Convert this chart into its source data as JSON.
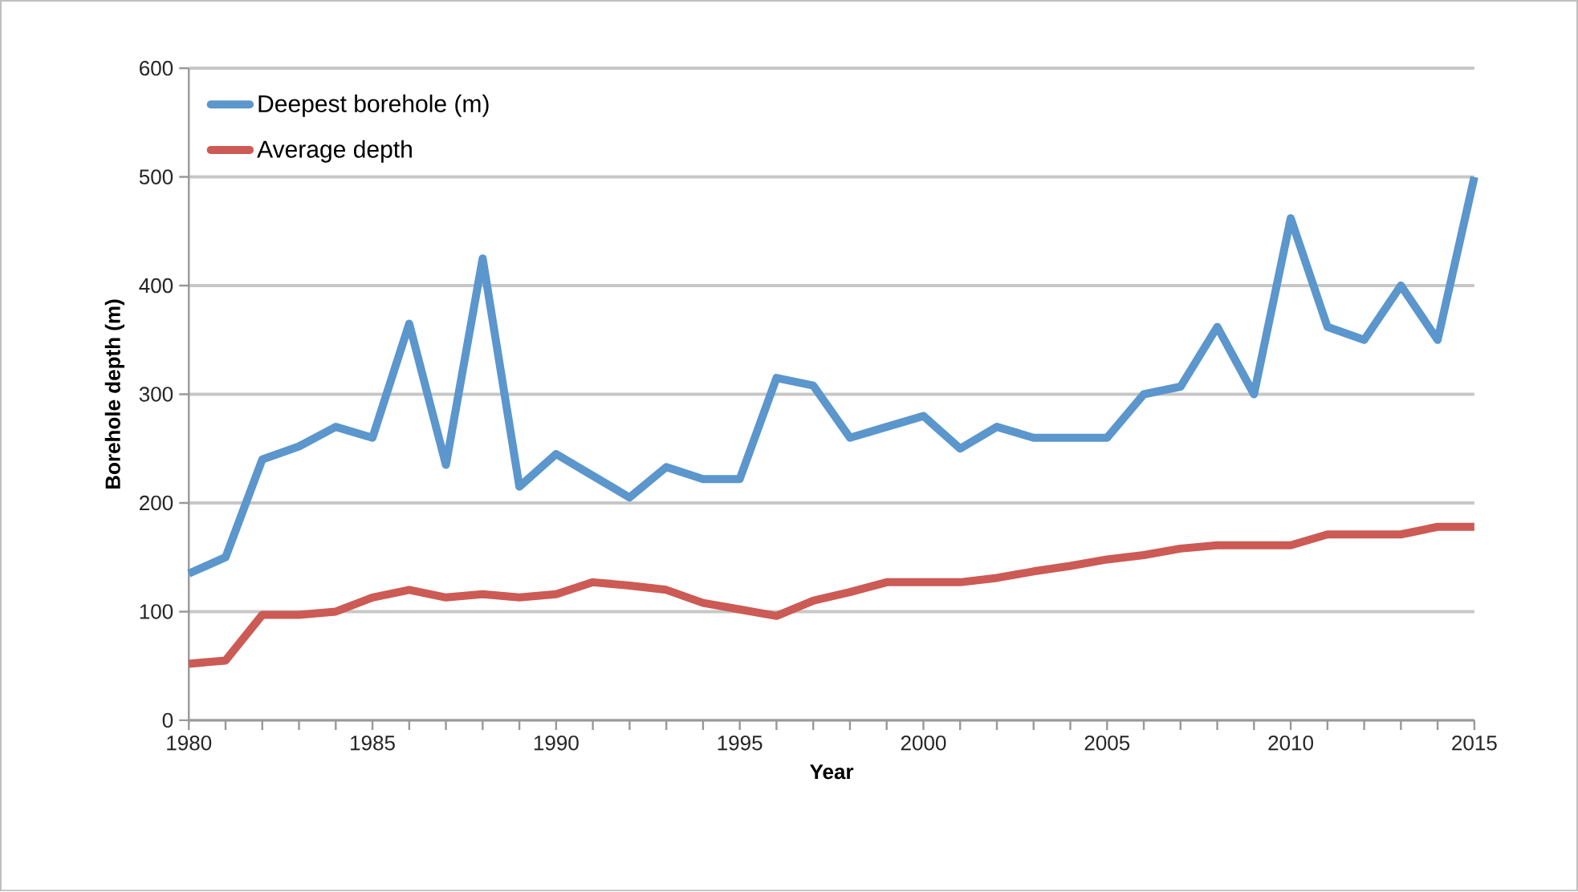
{
  "chart_data": {
    "type": "line",
    "xlabel": "Year",
    "ylabel": "Borehole depth (m)",
    "x": [
      1980,
      1981,
      1982,
      1983,
      1984,
      1985,
      1986,
      1987,
      1988,
      1989,
      1990,
      1991,
      1992,
      1993,
      1994,
      1995,
      1996,
      1997,
      1998,
      1999,
      2000,
      2001,
      2002,
      2003,
      2004,
      2005,
      2006,
      2007,
      2008,
      2009,
      2010,
      2011,
      2012,
      2013,
      2014,
      2015
    ],
    "series": [
      {
        "name": "Deepest borehole (m)",
        "color": "#5b96cc",
        "values": [
          135,
          150,
          240,
          252,
          270,
          260,
          365,
          235,
          425,
          215,
          245,
          225,
          205,
          233,
          222,
          222,
          315,
          308,
          260,
          270,
          280,
          250,
          270,
          260,
          260,
          260,
          300,
          307,
          362,
          300,
          462,
          362,
          350,
          400,
          350,
          500
        ]
      },
      {
        "name": "Average depth",
        "color": "#cc5a55",
        "values": [
          52,
          55,
          97,
          97,
          100,
          113,
          120,
          113,
          116,
          113,
          116,
          127,
          124,
          120,
          108,
          102,
          96,
          110,
          118,
          127,
          127,
          127,
          131,
          137,
          142,
          148,
          152,
          158,
          161,
          161,
          161,
          171,
          171,
          171,
          178,
          178
        ]
      }
    ],
    "xlim": [
      1980,
      2015
    ],
    "ylim": [
      0,
      600
    ],
    "xticks": [
      1980,
      {
        "value": 1981,
        "label": null
      },
      {
        "value": 1982,
        "label": null
      },
      {
        "value": 1983,
        "label": null
      },
      {
        "value": 1984,
        "label": null
      },
      1985,
      {
        "value": 1986,
        "label": null
      },
      {
        "value": 1987,
        "label": null
      },
      {
        "value": 1988,
        "label": null
      },
      {
        "value": 1989,
        "label": null
      },
      1990,
      {
        "value": 1991,
        "label": null
      },
      {
        "value": 1992,
        "label": null
      },
      {
        "value": 1993,
        "label": null
      },
      {
        "value": 1994,
        "label": null
      },
      1995,
      {
        "value": 1996,
        "label": null
      },
      {
        "value": 1997,
        "label": null
      },
      {
        "value": 1998,
        "label": null
      },
      {
        "value": 1999,
        "label": null
      },
      2000,
      {
        "value": 2001,
        "label": null
      },
      {
        "value": 2002,
        "label": null
      },
      {
        "value": 2003,
        "label": null
      },
      {
        "value": 2004,
        "label": null
      },
      2005,
      {
        "value": 2006,
        "label": null
      },
      {
        "value": 2007,
        "label": null
      },
      {
        "value": 2008,
        "label": null
      },
      {
        "value": 2009,
        "label": null
      },
      2010,
      {
        "value": 2011,
        "label": null
      },
      {
        "value": 2012,
        "label": null
      },
      {
        "value": 2013,
        "label": null
      },
      {
        "value": 2014,
        "label": null
      },
      2015
    ],
    "yticks": [
      0,
      100,
      200,
      300,
      400,
      500,
      600
    ],
    "grid": "y",
    "legend": "top left",
    "marker": "none",
    "line_style": "solid"
  }
}
